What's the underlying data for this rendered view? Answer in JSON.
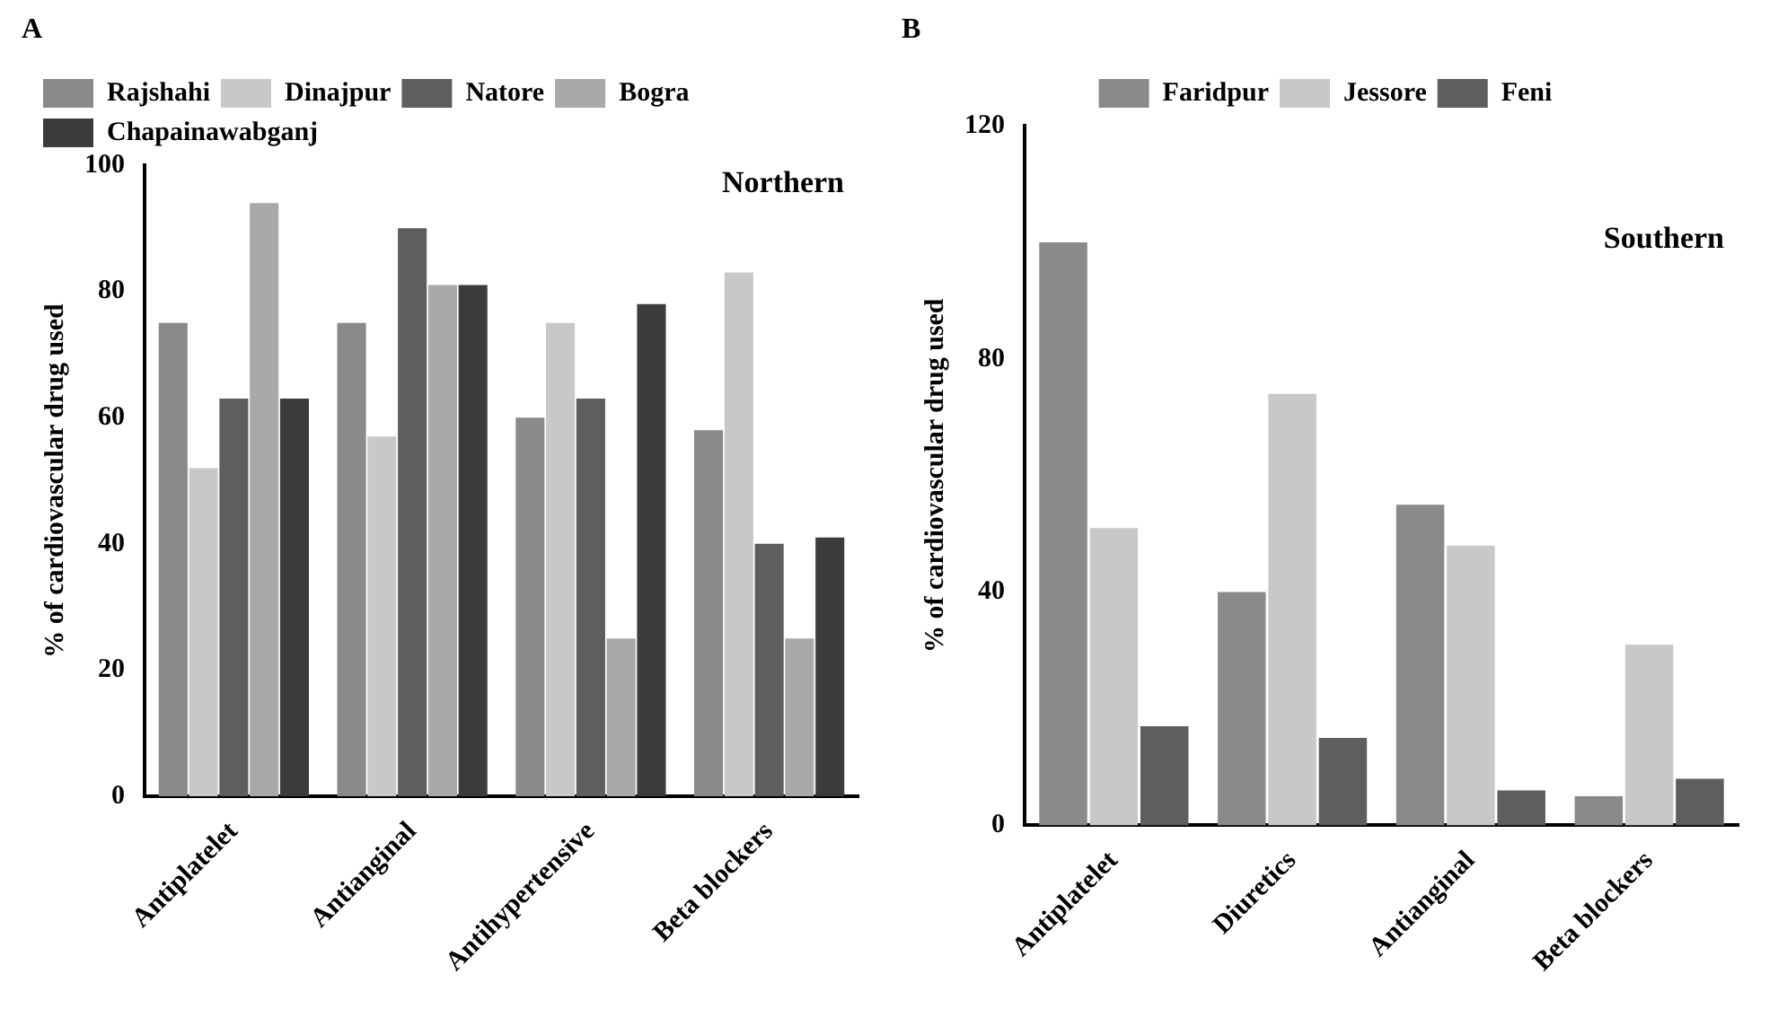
{
  "chart_data": [
    {
      "type": "bar",
      "ylabel": "% of cardiovascular drug used",
      "annotations": [
        "A",
        "Northern"
      ],
      "categories": [
        "Antiplatelet",
        "Antianginal",
        "Antihypertensive",
        "Beta blockers"
      ],
      "series": [
        {
          "name": "Rajshahi",
          "color": "#8a8a8a",
          "values": [
            75,
            75,
            60,
            58
          ]
        },
        {
          "name": "Dinajpur",
          "color": "#c8c8c8",
          "values": [
            52,
            57,
            75,
            83
          ]
        },
        {
          "name": "Natore",
          "color": "#5e5e5e",
          "values": [
            63,
            90,
            63,
            40
          ]
        },
        {
          "name": "Bogra",
          "color": "#a9a9a9",
          "values": [
            94,
            81,
            25,
            25
          ]
        },
        {
          "name": "Chapainawabganj",
          "color": "#3c3c3c",
          "values": [
            63,
            81,
            78,
            41
          ]
        }
      ],
      "ylim": [
        0,
        100
      ],
      "yticks": [
        0,
        20,
        40,
        60,
        80,
        100
      ],
      "legend": "top left"
    },
    {
      "type": "bar",
      "ylabel": "% of cardiovascular drug used",
      "annotations": [
        "B",
        "Southern"
      ],
      "categories": [
        "Antiplatelet",
        "Diuretics",
        "Antianginal",
        "Beta blockers"
      ],
      "series": [
        {
          "name": "Faridpur",
          "color": "#8a8a8a",
          "values": [
            100,
            40,
            55,
            5
          ]
        },
        {
          "name": "Jessore",
          "color": "#c8c8c8",
          "values": [
            51,
            74,
            48,
            31
          ]
        },
        {
          "name": "Feni",
          "color": "#5e5e5e",
          "values": [
            17,
            15,
            6,
            8
          ]
        }
      ],
      "ylim": [
        0,
        120
      ],
      "yticks": [
        0,
        40,
        80,
        120
      ],
      "legend": "top"
    }
  ]
}
